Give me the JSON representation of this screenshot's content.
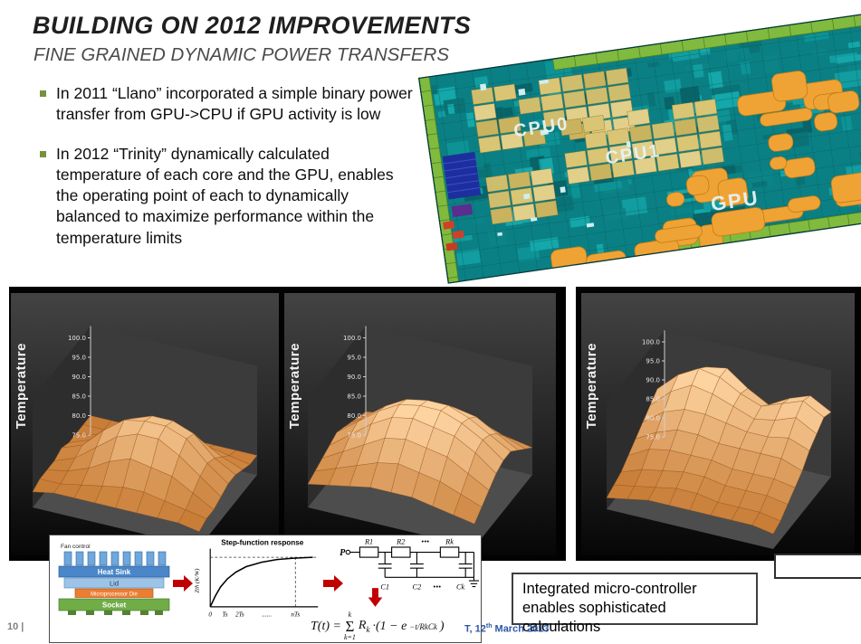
{
  "slide": {
    "title": "BUILDING ON 2012 IMPROVEMENTS",
    "subtitle": "FINE GRAINED DYNAMIC POWER TRANSFERS",
    "bullets": [
      "In 2011 “Llano” incorporated a simple binary power transfer from GPU->CPU if GPU activity is low",
      "In 2012 “Trinity” dynamically calculated temperature of each core and the GPU, enables the operating point of each to dynamically balanced to maximize performance within the temperature limits"
    ]
  },
  "colors": {
    "accent_green": "#76923c",
    "arrow_red": "#c00000",
    "surface_low": "#c97e38",
    "surface_high": "#fdd3a0",
    "die_teal": "#0b8084",
    "die_orange": "#f0a335",
    "die_green": "#80ba3e",
    "date_blue": "#2c57a5"
  },
  "die": {
    "labels": [
      "CPU0",
      "CPU1",
      "GPU"
    ]
  },
  "chart_data": [
    {
      "type": "surface",
      "zlabel": "Temperature",
      "zticks": [
        100,
        95,
        90,
        85,
        80,
        75
      ],
      "zrange": [
        75,
        100
      ],
      "grid": [
        [
          80,
          80,
          80,
          80,
          80,
          80,
          80,
          80,
          80
        ],
        [
          80,
          80,
          81,
          82,
          83,
          83,
          82,
          81,
          80
        ],
        [
          80,
          81,
          83,
          86,
          88,
          88,
          86,
          83,
          81
        ],
        [
          80,
          82,
          86,
          90,
          92,
          92,
          90,
          85,
          82
        ],
        [
          81,
          83,
          88,
          92,
          93,
          93,
          91,
          86,
          82
        ],
        [
          80,
          82,
          86,
          90,
          92,
          92,
          89,
          85,
          81
        ],
        [
          80,
          81,
          83,
          86,
          88,
          87,
          86,
          83,
          80
        ],
        [
          80,
          80,
          81,
          82,
          83,
          83,
          82,
          81,
          80
        ],
        [
          79,
          80,
          80,
          80,
          80,
          80,
          80,
          80,
          79
        ]
      ]
    },
    {
      "type": "surface",
      "zlabel": "Temperature",
      "zticks": [
        100,
        95,
        90,
        85,
        80,
        75
      ],
      "zrange": [
        75,
        100
      ],
      "grid": [
        [
          81,
          82,
          83,
          84,
          85,
          85,
          84,
          83,
          82
        ],
        [
          82,
          84,
          86,
          88,
          89,
          89,
          88,
          86,
          84
        ],
        [
          83,
          86,
          89,
          92,
          93,
          93,
          92,
          89,
          86
        ],
        [
          84,
          88,
          92,
          95,
          96,
          96,
          94,
          91,
          88
        ],
        [
          85,
          89,
          93,
          96,
          97,
          97,
          95,
          92,
          88
        ],
        [
          84,
          88,
          92,
          95,
          96,
          95,
          94,
          91,
          87
        ],
        [
          83,
          86,
          89,
          92,
          93,
          92,
          91,
          88,
          85
        ],
        [
          82,
          84,
          86,
          88,
          89,
          88,
          87,
          85,
          83
        ],
        [
          81,
          82,
          83,
          84,
          84,
          84,
          83,
          82,
          81
        ]
      ]
    },
    {
      "type": "surface",
      "zlabel": "Temperature",
      "zticks": [
        100,
        95,
        90,
        85,
        80,
        75
      ],
      "zrange": [
        75,
        100
      ],
      "grid": [
        [
          88,
          92,
          96,
          97,
          93,
          90,
          93,
          95,
          92
        ],
        [
          90,
          95,
          98,
          97,
          94,
          92,
          94,
          96,
          93
        ],
        [
          88,
          93,
          96,
          95,
          93,
          91,
          92,
          94,
          91
        ],
        [
          86,
          90,
          92,
          92,
          91,
          90,
          90,
          91,
          89
        ],
        [
          84,
          87,
          89,
          89,
          88,
          88,
          88,
          88,
          86
        ],
        [
          82,
          85,
          86,
          86,
          86,
          85,
          85,
          85,
          84
        ],
        [
          80,
          82,
          83,
          84,
          84,
          83,
          83,
          83,
          82
        ],
        [
          79,
          80,
          81,
          82,
          82,
          81,
          81,
          81,
          80
        ],
        [
          78,
          79,
          80,
          80,
          80,
          80,
          80,
          80,
          79
        ]
      ]
    },
    {
      "type": "line",
      "title": "Step-function response",
      "ylabel": "Zth (K/W)",
      "xticks": [
        "0",
        "Ts",
        "2Ts",
        "......",
        "nTs"
      ],
      "curve": [
        [
          0,
          0
        ],
        [
          0.05,
          0.22
        ],
        [
          0.1,
          0.4
        ],
        [
          0.17,
          0.57
        ],
        [
          0.25,
          0.7
        ],
        [
          0.35,
          0.81
        ],
        [
          0.5,
          0.9
        ],
        [
          0.65,
          0.955
        ],
        [
          0.8,
          0.98
        ],
        [
          1,
          1
        ]
      ]
    }
  ],
  "thermal": {
    "stack": {
      "fan": "Fan control",
      "heatsink": "Heat Sink",
      "lid": "Lid",
      "die": "Microprocessor Die",
      "socket": "Socket"
    },
    "circuit": {
      "node": "P",
      "r_labels": [
        "R1",
        "R2",
        "Rk"
      ],
      "c_labels": [
        "C1",
        "C2",
        "Ck"
      ],
      "dots": "•••"
    },
    "formula": {
      "prefix": "T(t) =",
      "sigma": "Σ",
      "sum_top": "k",
      "sum_bot": "k=1",
      "term": "R",
      "term_sub": "k",
      "mid": "·(1 − e",
      "exp": "−t/RkCk",
      "close": ")"
    }
  },
  "callout": {
    "text": "Integrated micro-controller enables sophisticated calculations"
  },
  "footer": {
    "page": "10 |",
    "date_p1": "T, 12",
    "date_sup": "th",
    "date_p2": " March 2013"
  }
}
